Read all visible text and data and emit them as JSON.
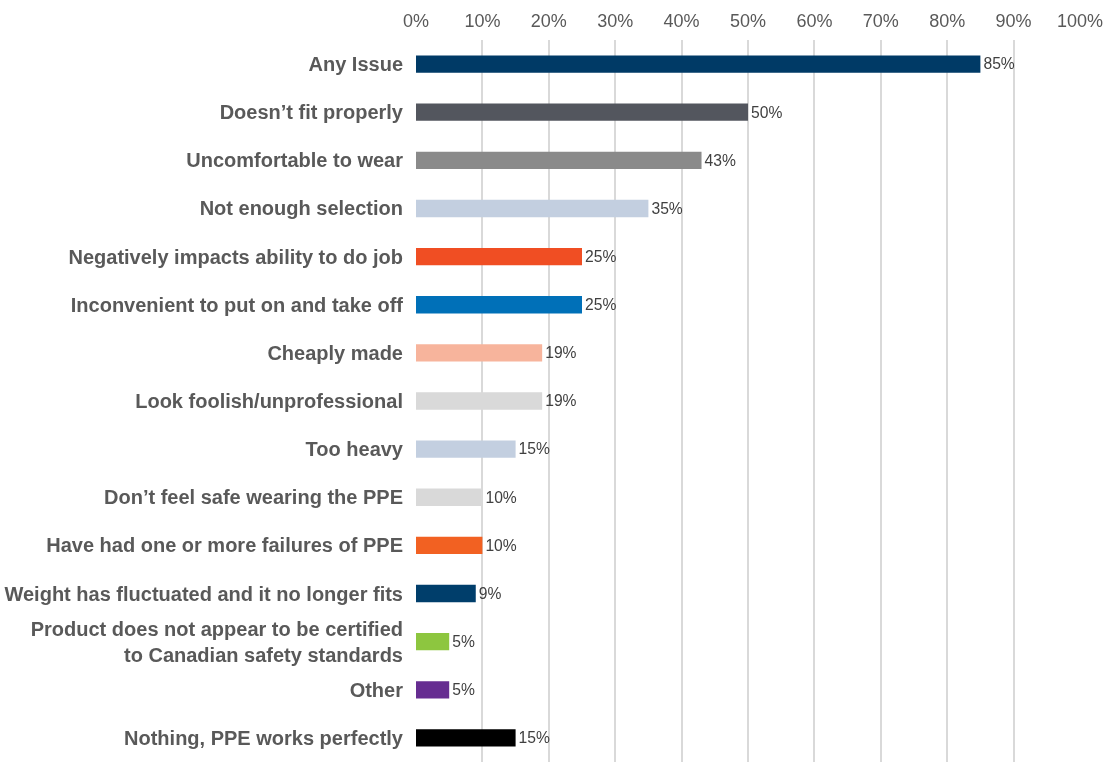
{
  "chart_data": {
    "type": "bar",
    "orientation": "horizontal",
    "categories": [
      "Any Issue",
      "Doesn’t fit properly",
      "Uncomfortable to wear",
      "Not enough selection",
      "Negatively impacts ability to do job",
      "Inconvenient to put on and take off",
      "Cheaply made",
      "Look foolish/unprofessional",
      "Too heavy",
      "Don’t feel safe wearing the PPE",
      "Have had one or more failures of PPE",
      "Weight has fluctuated and it no longer fits",
      "Product does not appear to be certified\nto Canadian safety standards",
      "Other",
      "Nothing, PPE works perfectly"
    ],
    "values": [
      85,
      50,
      43,
      35,
      25,
      25,
      19,
      19,
      15,
      10,
      10,
      9,
      5,
      5,
      15
    ],
    "value_labels": [
      "85%",
      "50%",
      "43%",
      "35%",
      "25%",
      "25%",
      "19%",
      "19%",
      "15%",
      "10%",
      "10%",
      "9%",
      "5%",
      "5%",
      "15%"
    ],
    "colors": [
      "#003a66",
      "#53565e",
      "#8a8a8a",
      "#c3cfe0",
      "#f04e23",
      "#0070b8",
      "#f7b49c",
      "#d9d9d9",
      "#c3cfe0",
      "#d9d9d9",
      "#f26122",
      "#003e6b",
      "#8dc63f",
      "#662d91",
      "#000000"
    ],
    "xlim": [
      0,
      100
    ],
    "xticks": [
      {
        "value": 0,
        "label": "0%"
      },
      {
        "value": 10,
        "label": "10%"
      },
      {
        "value": 20,
        "label": "20%"
      },
      {
        "value": 30,
        "label": "30%"
      },
      {
        "value": 40,
        "label": "40%"
      },
      {
        "value": 50,
        "label": "50%"
      },
      {
        "value": 60,
        "label": "60%"
      },
      {
        "value": 70,
        "label": "70%"
      },
      {
        "value": 80,
        "label": "80%"
      },
      {
        "value": 90,
        "label": "90%"
      },
      {
        "value": 100,
        "label": "100%"
      }
    ],
    "grid": "x"
  }
}
